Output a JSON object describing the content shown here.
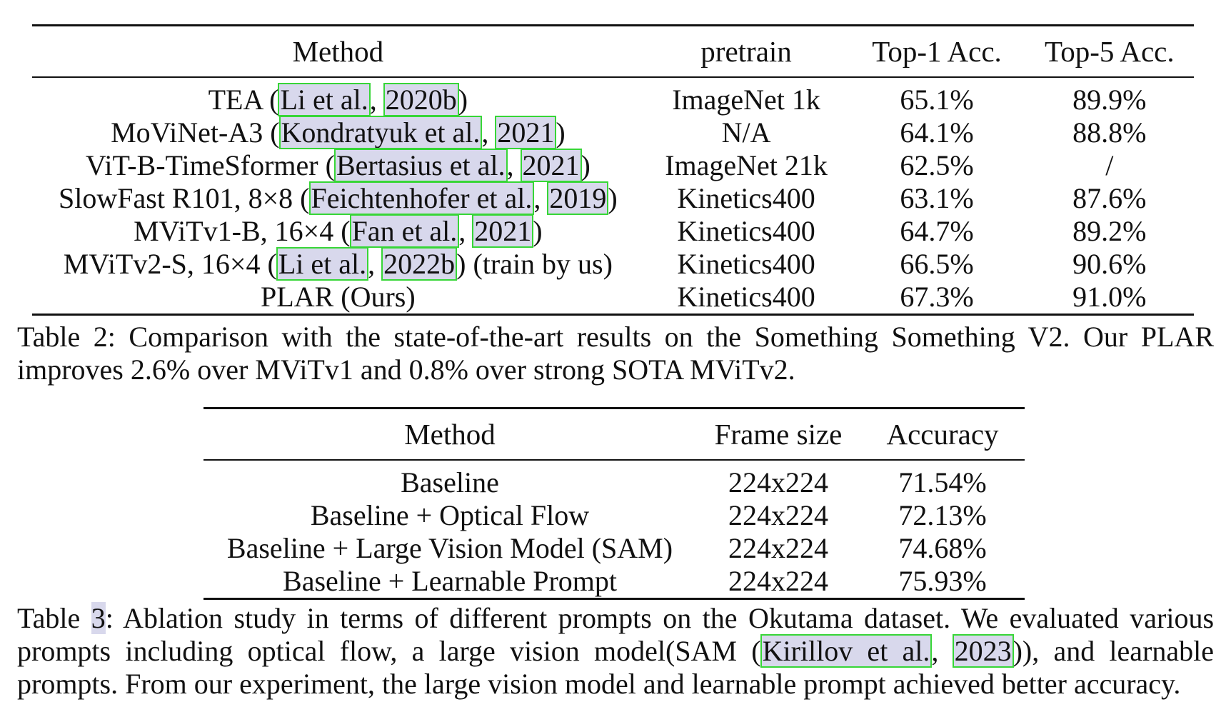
{
  "table2": {
    "headers": [
      "Method",
      "pretrain",
      "Top-1 Acc.",
      "Top-5 Acc."
    ],
    "rows": [
      {
        "method": "TEA",
        "cite_a": "Li et al.",
        "cite_b": "2020b",
        "suffix": "",
        "pretrain": "ImageNet 1k",
        "top1": "65.1%",
        "top5": "89.9%"
      },
      {
        "method": "MoViNet-A3",
        "cite_a": "Kondratyuk et al.",
        "cite_b": "2021",
        "suffix": "",
        "pretrain": "N/A",
        "top1": "64.1%",
        "top5": "88.8%"
      },
      {
        "method": "ViT-B-TimeSformer",
        "cite_a": "Bertasius et al.",
        "cite_b": "2021",
        "suffix": "",
        "pretrain": "ImageNet 21k",
        "top1": "62.5%",
        "top5": "/"
      },
      {
        "method": "SlowFast R101, 8×8",
        "cite_a": "Feichtenhofer et al.",
        "cite_b": "2019",
        "suffix": "",
        "pretrain": "Kinetics400",
        "top1": "63.1%",
        "top5": "87.6%"
      },
      {
        "method": "MViTv1-B, 16×4",
        "cite_a": "Fan et al.",
        "cite_b": "2021",
        "suffix": "",
        "pretrain": "Kinetics400",
        "top1": "64.7%",
        "top5": "89.2%"
      },
      {
        "method": "MViTv2-S, 16×4",
        "cite_a": "Li et al.",
        "cite_b": "2022b",
        "suffix": " (train by us)",
        "pretrain": "Kinetics400",
        "top1": "66.5%",
        "top5": "90.6%"
      }
    ],
    "last_row": {
      "method": "PLAR (Ours)",
      "pretrain": "Kinetics400",
      "top1": "67.3%",
      "top5": "91.0%"
    },
    "caption": "Table 2: Comparison with the state-of-the-art results on the Something Something V2. Our PLAR improves 2.6% over MViTv1 and 0.8% over strong SOTA MViTv2."
  },
  "table3": {
    "headers": [
      "Method",
      "Frame size",
      "Accuracy"
    ],
    "rows": [
      {
        "method": "Baseline",
        "frame": "224x224",
        "acc": "71.54%"
      },
      {
        "method": "Baseline + Optical Flow",
        "frame": "224x224",
        "acc": "72.13%"
      },
      {
        "method": "Baseline + Large Vision Model (SAM)",
        "frame": "224x224",
        "acc": "74.68%"
      },
      {
        "method": "Baseline + Learnable Prompt",
        "frame": "224x224",
        "acc": "75.93%"
      }
    ],
    "caption_label": "Table ",
    "caption_number": "3",
    "caption_mid": ": Ablation study in terms of different prompts on the Okutama dataset. We evaluated various prompts including optical flow, a large vision model(SAM (",
    "cite_a": "Kirillov et al.",
    "cite_b": "2023",
    "caption_end": ")), and learnable prompts. From our experiment, the large vision model and learnable prompt achieved better accuracy."
  },
  "colors": {
    "citation_box": "#37d637",
    "citation_highlight": "#d8d8ec"
  }
}
